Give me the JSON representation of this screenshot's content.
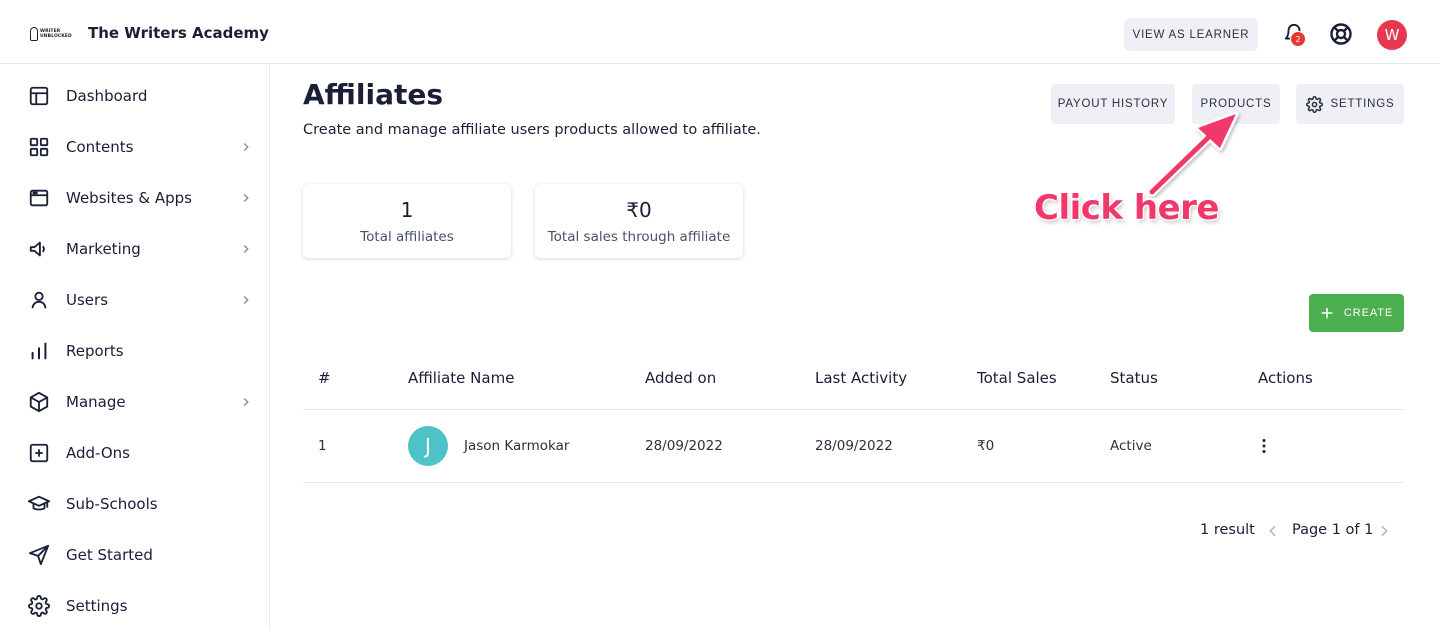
{
  "header": {
    "brand": "The Writers Academy",
    "logo_text": [
      "WRITER",
      "UNBLOCKED"
    ],
    "view_as_learner": "VIEW AS LEARNER",
    "notification_count": "2",
    "avatar_initial": "W"
  },
  "sidebar": {
    "items": [
      {
        "label": "Dashboard",
        "icon": "layout-icon",
        "chevron": false
      },
      {
        "label": "Contents",
        "icon": "grid-icon",
        "chevron": true
      },
      {
        "label": "Websites & Apps",
        "icon": "browser-window-icon",
        "chevron": true
      },
      {
        "label": "Marketing",
        "icon": "megaphone-icon",
        "chevron": true
      },
      {
        "label": "Users",
        "icon": "user-icon",
        "chevron": true
      },
      {
        "label": "Reports",
        "icon": "bar-chart-icon",
        "chevron": false
      },
      {
        "label": "Manage",
        "icon": "cube-icon",
        "chevron": true
      },
      {
        "label": "Add-Ons",
        "icon": "plus-square-icon",
        "chevron": false
      },
      {
        "label": "Sub-Schools",
        "icon": "graduation-cap-icon",
        "chevron": false
      },
      {
        "label": "Get Started",
        "icon": "send-icon",
        "chevron": false
      },
      {
        "label": "Settings",
        "icon": "gear-icon",
        "chevron": false
      }
    ]
  },
  "page": {
    "title": "Affiliates",
    "subtitle": "Create and manage affiliate users products allowed to affiliate.",
    "buttons": {
      "payout_history": "PAYOUT HISTORY",
      "products": "PRODUCTS",
      "settings": "SETTINGS",
      "create": "CREATE"
    },
    "stats": [
      {
        "value": "1",
        "label": "Total affiliates"
      },
      {
        "value": "₹0",
        "label": "Total sales through affiliate"
      }
    ],
    "annotation": "Click here"
  },
  "table": {
    "columns": [
      "#",
      "Affiliate Name",
      "Added on",
      "Last Activity",
      "Total Sales",
      "Status",
      "Actions"
    ],
    "rows": [
      {
        "index": "1",
        "avatar_initial": "J",
        "name": "Jason Karmokar",
        "added_on": "28/09/2022",
        "last_activity": "28/09/2022",
        "total_sales": "₹0",
        "status": "Active"
      }
    ]
  },
  "pagination": {
    "result": "1 result",
    "page": "Page 1 of 1"
  },
  "colors": {
    "accent_create": "#4caf50",
    "annotation": "#f0386b",
    "avatar_user": "#e8384f",
    "avatar_affiliate": "#4ec3c7",
    "badge": "#e53935"
  }
}
